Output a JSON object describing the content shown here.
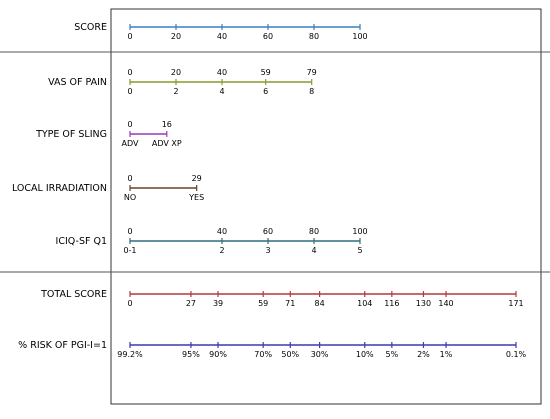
{
  "chart_data": {
    "type": "nomogram",
    "rows": [
      {
        "label": "SCORE",
        "color": "#3d7ebf",
        "top": [],
        "bottom": [
          "0",
          "20",
          "40",
          "60",
          "80",
          "100"
        ],
        "points": [
          0,
          20,
          40,
          60,
          80,
          100
        ]
      },
      {
        "label": "VAS OF PAIN",
        "color": "#8a9a2a",
        "top": [
          "0",
          "20",
          "40",
          "59",
          "79"
        ],
        "bottom": [
          "0",
          "2",
          "4",
          "6",
          "8"
        ],
        "points": [
          0,
          20,
          40,
          59,
          79
        ]
      },
      {
        "label": "TYPE OF SLING",
        "color": "#9a39b8",
        "top": [
          "0",
          "16"
        ],
        "bottom": [
          "ADV",
          "ADV XP"
        ],
        "points": [
          0,
          16
        ]
      },
      {
        "label": "LOCAL IRRADIATION",
        "color": "#6b4226",
        "top": [
          "0",
          "29"
        ],
        "bottom": [
          "NO",
          "YES"
        ],
        "points": [
          0,
          29
        ]
      },
      {
        "label": "ICIQ-SF Q1",
        "color": "#2f6f7a",
        "top": [
          "0",
          "40",
          "60",
          "80",
          "100"
        ],
        "bottom": [
          "0-1",
          "2",
          "3",
          "4",
          "5"
        ],
        "points": [
          0,
          40,
          60,
          80,
          100
        ]
      },
      {
        "label": "TOTAL SCORE",
        "color": "#b23a3a",
        "top": [],
        "bottom": [
          "0",
          "27",
          "39",
          "59",
          "71",
          "84",
          "104",
          "116",
          "130",
          "140",
          "171"
        ],
        "points": [
          0,
          27,
          39,
          59,
          71,
          84,
          104,
          116,
          130,
          140,
          171
        ]
      },
      {
        "label": "% RISK OF PGI-I=1",
        "color": "#3a3ab2",
        "top": [],
        "bottom": [
          "99.2%",
          "95%",
          "90%",
          "70%",
          "50%",
          "30%",
          "10%",
          "5%",
          "2%",
          "1%",
          "0.1%"
        ],
        "points": [
          0,
          27,
          39,
          59,
          71,
          84,
          104,
          116,
          130,
          140,
          171
        ]
      }
    ]
  }
}
